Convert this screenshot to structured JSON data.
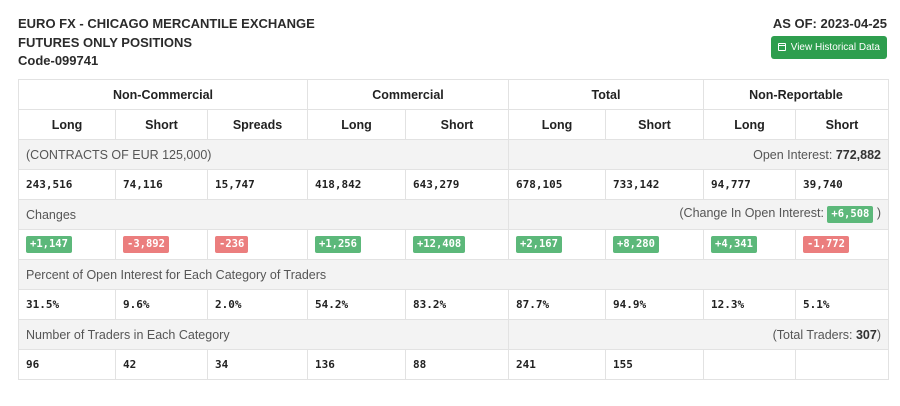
{
  "header": {
    "title_line1": "EURO FX - CHICAGO MERCANTILE EXCHANGE",
    "title_line2": "FUTURES ONLY POSITIONS",
    "code": "Code-099741",
    "as_of": "AS OF: 2023-04-25",
    "history_button": "View Historical Data"
  },
  "groups": [
    "Non-Commercial",
    "Commercial",
    "Total",
    "Non-Reportable"
  ],
  "columns": [
    "Long",
    "Short",
    "Spreads",
    "Long",
    "Short",
    "Long",
    "Short",
    "Long",
    "Short"
  ],
  "contracts": {
    "label": "(CONTRACTS OF EUR 125,000)",
    "oi_label": "Open Interest:",
    "oi_value": "772,882",
    "values": [
      "243,516",
      "74,116",
      "15,747",
      "418,842",
      "643,279",
      "678,105",
      "733,142",
      "94,777",
      "39,740"
    ]
  },
  "changes": {
    "label": "Changes",
    "oi_prefix": "(Change In Open Interest:",
    "oi_value": "+6,508",
    "oi_suffix": ")",
    "values": [
      "+1,147",
      "-3,892",
      "-236",
      "+1,256",
      "+12,408",
      "+2,167",
      "+8,280",
      "+4,341",
      "-1,772"
    ]
  },
  "percent": {
    "label": "Percent of Open Interest for Each Category of Traders",
    "values": [
      "31.5%",
      "9.6%",
      "2.0%",
      "54.2%",
      "83.2%",
      "87.7%",
      "94.9%",
      "12.3%",
      "5.1%"
    ]
  },
  "traders": {
    "label": "Number of Traders in Each Category",
    "total_prefix": "(Total Traders:",
    "total_value": "307",
    "total_suffix": ")",
    "values": [
      "96",
      "42",
      "34",
      "136",
      "88",
      "241",
      "155",
      "",
      ""
    ]
  },
  "colors": {
    "positive": "#5cb87a",
    "negative": "#eb7e7e",
    "button": "#2e9e4e"
  }
}
